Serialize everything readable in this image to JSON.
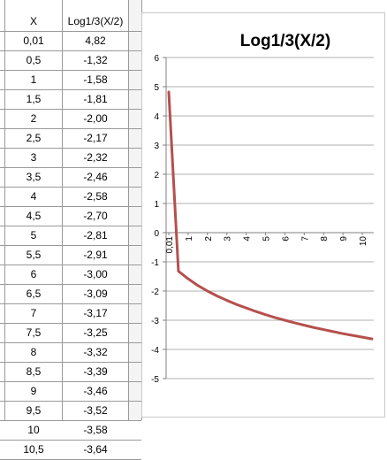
{
  "table": {
    "headers": [
      "X",
      "Log1/3(X/2)"
    ],
    "rows": [
      [
        "0,01",
        "4,82"
      ],
      [
        "0,5",
        "-1,32"
      ],
      [
        "1",
        "-1,58"
      ],
      [
        "1,5",
        "-1,81"
      ],
      [
        "2",
        "-2,00"
      ],
      [
        "2,5",
        "-2,17"
      ],
      [
        "3",
        "-2,32"
      ],
      [
        "3,5",
        "-2,46"
      ],
      [
        "4",
        "-2,58"
      ],
      [
        "4,5",
        "-2,70"
      ],
      [
        "5",
        "-2,81"
      ],
      [
        "5,5",
        "-2,91"
      ],
      [
        "6",
        "-3,00"
      ],
      [
        "6,5",
        "-3,09"
      ],
      [
        "7",
        "-3,17"
      ],
      [
        "7,5",
        "-3,25"
      ],
      [
        "8",
        "-3,32"
      ],
      [
        "8,5",
        "-3,39"
      ],
      [
        "9",
        "-3,46"
      ],
      [
        "9,5",
        "-3,52"
      ],
      [
        "10",
        "-3,58"
      ],
      [
        "10,5",
        "-3,64"
      ]
    ]
  },
  "chart_data": {
    "type": "line",
    "title": "Log1/3(X/2)",
    "x": [
      0.01,
      0.5,
      1,
      1.5,
      2,
      2.5,
      3,
      3.5,
      4,
      4.5,
      5,
      5.5,
      6,
      6.5,
      7,
      7.5,
      8,
      8.5,
      9,
      9.5,
      10,
      10.5
    ],
    "values": [
      4.82,
      -1.32,
      -1.58,
      -1.81,
      -2.0,
      -2.17,
      -2.32,
      -2.46,
      -2.58,
      -2.7,
      -2.81,
      -2.91,
      -3.0,
      -3.09,
      -3.17,
      -3.25,
      -3.32,
      -3.39,
      -3.46,
      -3.52,
      -3.58,
      -3.64
    ],
    "x_tick_labels": [
      "0,01",
      "1",
      "2",
      "3",
      "4",
      "5",
      "6",
      "7",
      "8",
      "9",
      "10"
    ],
    "ylim": [
      -5,
      6
    ],
    "y_ticks": [
      "6",
      "5",
      "4",
      "3",
      "2",
      "1",
      "0",
      "-1",
      "-2",
      "-3",
      "-4",
      "-5"
    ],
    "grid": true,
    "series_color": "#b5504d"
  }
}
